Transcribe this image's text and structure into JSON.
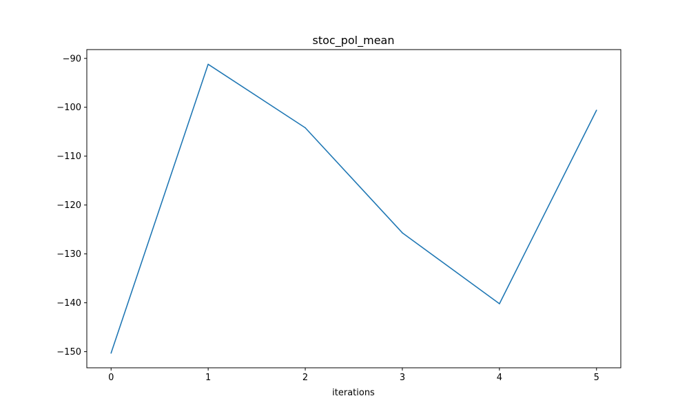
{
  "chart_data": {
    "type": "line",
    "title": "stoc_pol_mean",
    "xlabel": "iterations",
    "ylabel": "",
    "x": [
      0,
      1,
      2,
      3,
      4,
      5
    ],
    "series": [
      {
        "values": [
          -150.3,
          -91.2,
          -104.2,
          -125.7,
          -140.2,
          -100.6
        ],
        "color": "#1f77b4"
      }
    ],
    "xticks": [
      0,
      1,
      2,
      3,
      4,
      5
    ],
    "xtick_labels": [
      "0",
      "1",
      "2",
      "3",
      "4",
      "5"
    ],
    "yticks": [
      -150,
      -140,
      -130,
      -120,
      -110,
      -100,
      -90
    ],
    "ytick_labels": [
      "−150",
      "−140",
      "−130",
      "−120",
      "−110",
      "−100",
      "−90"
    ],
    "xlim": [
      -0.25,
      5.25
    ],
    "ylim": [
      -153.3,
      -88.2
    ],
    "grid": false,
    "legend": false
  }
}
